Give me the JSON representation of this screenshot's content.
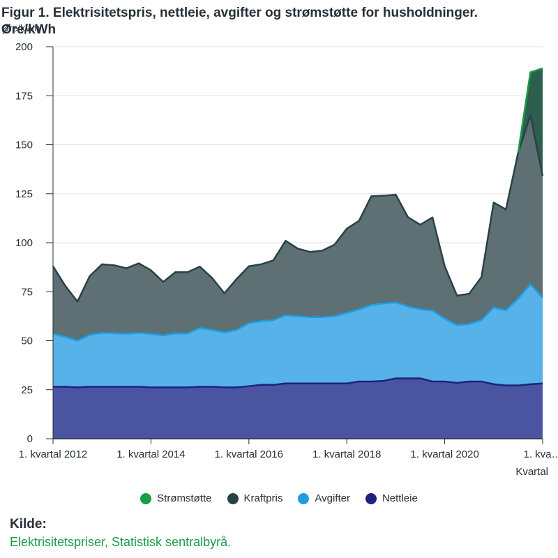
{
  "title": "Figur 1. Elektrisitetspris, nettleie, avgifter og strømstøtte for husholdninger. Øre/kWh",
  "unit_label": "Øre/kWh",
  "source": {
    "label": "Kilde:",
    "text": "Elektrisitetspriser, Statistisk sentralbyrå."
  },
  "chart_data": {
    "type": "area",
    "stacked": true,
    "xlabel": "Kvartal",
    "ylabel": "Øre/kWh",
    "ylim": [
      0,
      200
    ],
    "yticks": [
      0,
      25,
      50,
      75,
      100,
      125,
      150,
      175,
      200
    ],
    "xtick_labels": [
      {
        "index": 0,
        "label": "1. kvartal 2012"
      },
      {
        "index": 8,
        "label": "1. kvartal 2014"
      },
      {
        "index": 16,
        "label": "1. kvartal 2016"
      },
      {
        "index": 24,
        "label": "1. kvartal 2018"
      },
      {
        "index": 32,
        "label": "1. kvartal 2020"
      },
      {
        "index": 40,
        "label": "1. kva…"
      }
    ],
    "legend_position": "bottom",
    "grid": true,
    "series": [
      {
        "name": "Nettleie",
        "color": "#1a237e",
        "fill": "#4b54a0",
        "values": [
          26.5,
          26.5,
          26.2,
          26.5,
          26.5,
          26.5,
          26.5,
          26.5,
          26.2,
          26.2,
          26.2,
          26.2,
          26.5,
          26.5,
          26.2,
          26.2,
          26.8,
          27.5,
          27.5,
          28.2,
          28.2,
          28.2,
          28.2,
          28.2,
          28.2,
          29.2,
          29.2,
          29.5,
          30.8,
          30.8,
          30.8,
          29.2,
          29.2,
          28.5,
          29.2,
          29.2,
          27.8,
          27.2,
          27.2,
          27.8,
          28.2
        ]
      },
      {
        "name": "Avgifter",
        "color": "#1d9de2",
        "fill": "#56b2e8",
        "values": [
          27.0,
          25.5,
          23.8,
          26.5,
          27.5,
          27.3,
          27.0,
          27.5,
          27.3,
          26.5,
          27.5,
          27.5,
          30.0,
          29.0,
          28.0,
          29.3,
          32.2,
          32.5,
          33.0,
          34.8,
          34.3,
          33.8,
          33.8,
          34.3,
          36.0,
          36.8,
          39.0,
          39.5,
          38.7,
          36.7,
          35.2,
          36.2,
          32.0,
          29.5,
          29.3,
          31.3,
          39.2,
          38.3,
          44.3,
          51.0,
          43.8
        ]
      },
      {
        "name": "Kraftpris",
        "color": "#274247",
        "fill": "#5e7073",
        "values": [
          34.5,
          26.0,
          20.0,
          30.0,
          35.0,
          34.7,
          33.5,
          35.5,
          32.5,
          27.3,
          31.3,
          31.3,
          31.3,
          26.5,
          20.0,
          26.0,
          29.0,
          29.0,
          30.5,
          38.0,
          34.5,
          33.3,
          34.0,
          36.5,
          43.0,
          45.2,
          55.5,
          55.0,
          55.0,
          45.5,
          43.2,
          47.5,
          26.8,
          15.0,
          15.5,
          22.0,
          53.5,
          51.5,
          74.5,
          86.2,
          62.0
        ]
      },
      {
        "name": "Strømstøtte",
        "color": "#1a9d49",
        "fill": "#2e5e4e",
        "values": [
          0,
          0,
          0,
          0,
          0,
          0,
          0,
          0,
          0,
          0,
          0,
          0,
          0,
          0,
          0,
          0,
          0,
          0,
          0,
          0,
          0,
          0,
          0,
          0,
          0,
          0,
          0,
          0,
          0,
          0,
          0,
          0,
          0,
          0,
          0,
          0,
          0,
          0,
          0,
          22.0,
          55.0
        ]
      }
    ],
    "legend_order": [
      "Strømstøtte",
      "Kraftpris",
      "Avgifter",
      "Nettleie"
    ]
  }
}
